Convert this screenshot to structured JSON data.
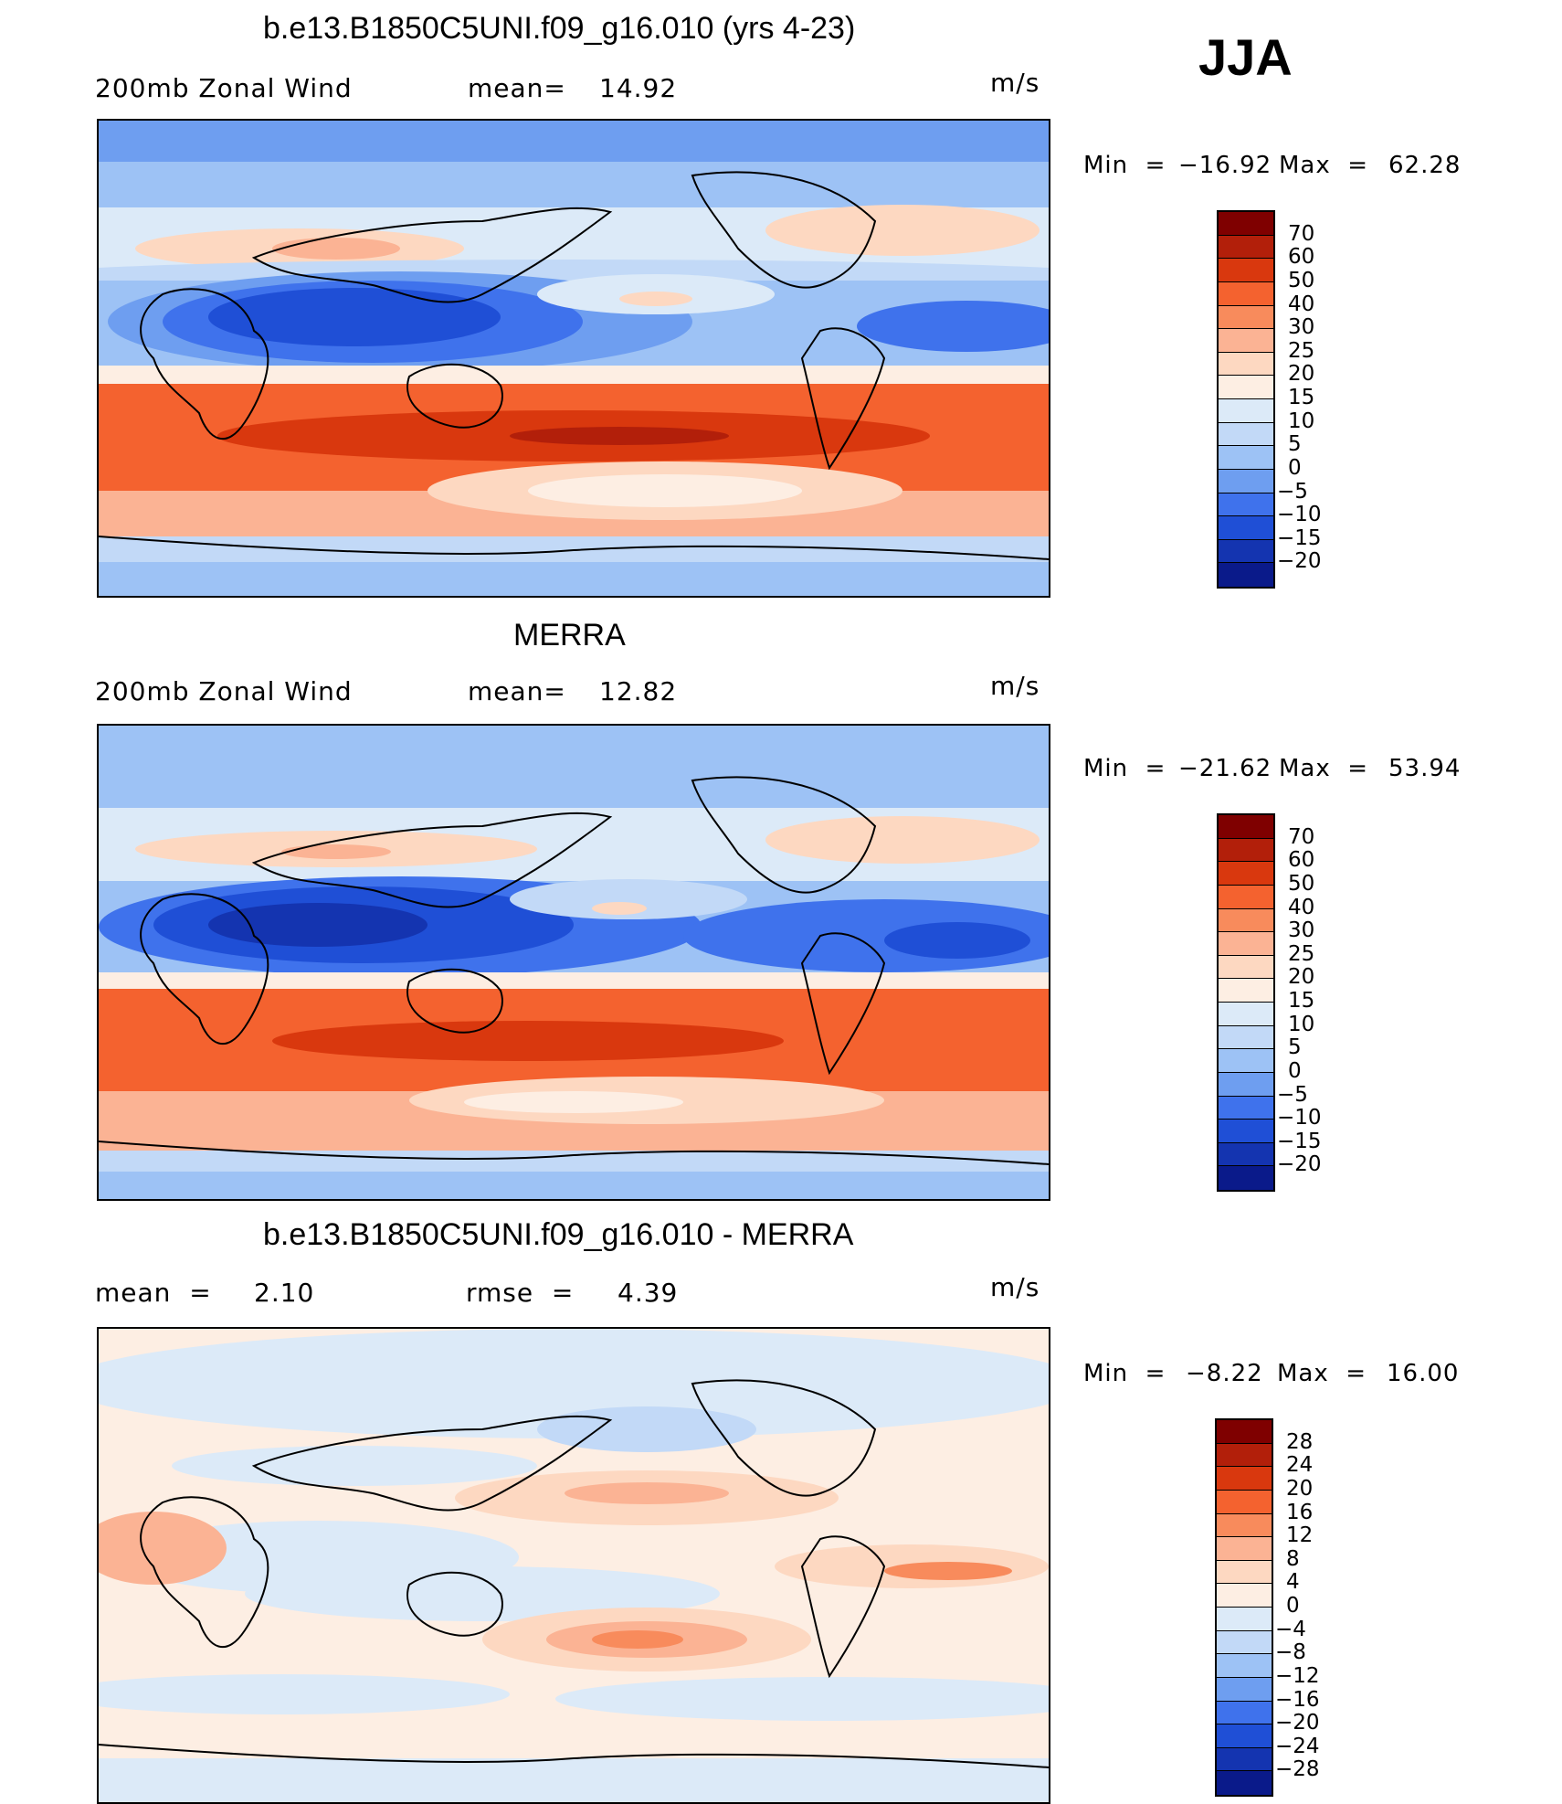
{
  "season": "JJA",
  "panels": [
    {
      "title": "b.e13.B1850C5UNI.f09_g16.010 (yrs 4-23)",
      "left_label": "200mb Zonal Wind",
      "stat1_label": "mean=",
      "stat1_value": "14.92",
      "stat2_label": "",
      "stat2_value": "",
      "units": "m/s",
      "min_label": "Min  =",
      "min_value": "−16.92",
      "max_label": "Max  =",
      "max_value": "62.28",
      "colorbar": {
        "labels": [
          "70",
          "60",
          "50",
          "40",
          "30",
          "25",
          "20",
          "15",
          "10",
          "5",
          "0",
          "−5",
          "−10",
          "−15",
          "−20"
        ],
        "colors": [
          "#7f0000",
          "#b21f0a",
          "#d9380e",
          "#f4622f",
          "#f88b5c",
          "#fbb394",
          "#fdd8c1",
          "#fdeee3",
          "#dceaf8",
          "#c2d9f7",
          "#9dc2f5",
          "#6e9ef0",
          "#3f72ec",
          "#1f4fd6",
          "#1434b0",
          "#0a1a8a"
        ]
      }
    },
    {
      "title": "MERRA",
      "left_label": "200mb Zonal Wind",
      "stat1_label": "mean=",
      "stat1_value": "12.82",
      "stat2_label": "",
      "stat2_value": "",
      "units": "m/s",
      "min_label": "Min  =",
      "min_value": "−21.62",
      "max_label": "Max  =",
      "max_value": "53.94",
      "colorbar": {
        "labels": [
          "70",
          "60",
          "50",
          "40",
          "30",
          "25",
          "20",
          "15",
          "10",
          "5",
          "0",
          "−5",
          "−10",
          "−15",
          "−20"
        ],
        "colors": [
          "#7f0000",
          "#b21f0a",
          "#d9380e",
          "#f4622f",
          "#f88b5c",
          "#fbb394",
          "#fdd8c1",
          "#fdeee3",
          "#dceaf8",
          "#c2d9f7",
          "#9dc2f5",
          "#6e9ef0",
          "#3f72ec",
          "#1f4fd6",
          "#1434b0",
          "#0a1a8a"
        ]
      }
    },
    {
      "title": "b.e13.B1850C5UNI.f09_g16.010 - MERRA",
      "left_label": "mean  =",
      "stat1_label": "2.10",
      "stat1_value": "",
      "stat2_label": "rmse  =",
      "stat2_value": "4.39",
      "units": "m/s",
      "min_label": "Min  =",
      "min_value": "−8.22",
      "max_label": "Max  =",
      "max_value": "16.00",
      "colorbar": {
        "labels": [
          "28",
          "24",
          "20",
          "16",
          "12",
          "8",
          "4",
          "0",
          "−4",
          "−8",
          "−12",
          "−16",
          "−20",
          "−24",
          "−28"
        ],
        "colors": [
          "#7f0000",
          "#b21f0a",
          "#d9380e",
          "#f4622f",
          "#f88b5c",
          "#fbb394",
          "#fdd8c1",
          "#fdeee3",
          "#dceaf8",
          "#c2d9f7",
          "#9dc2f5",
          "#6e9ef0",
          "#3f72ec",
          "#1f4fd6",
          "#1434b0",
          "#0a1a8a"
        ]
      }
    }
  ]
}
